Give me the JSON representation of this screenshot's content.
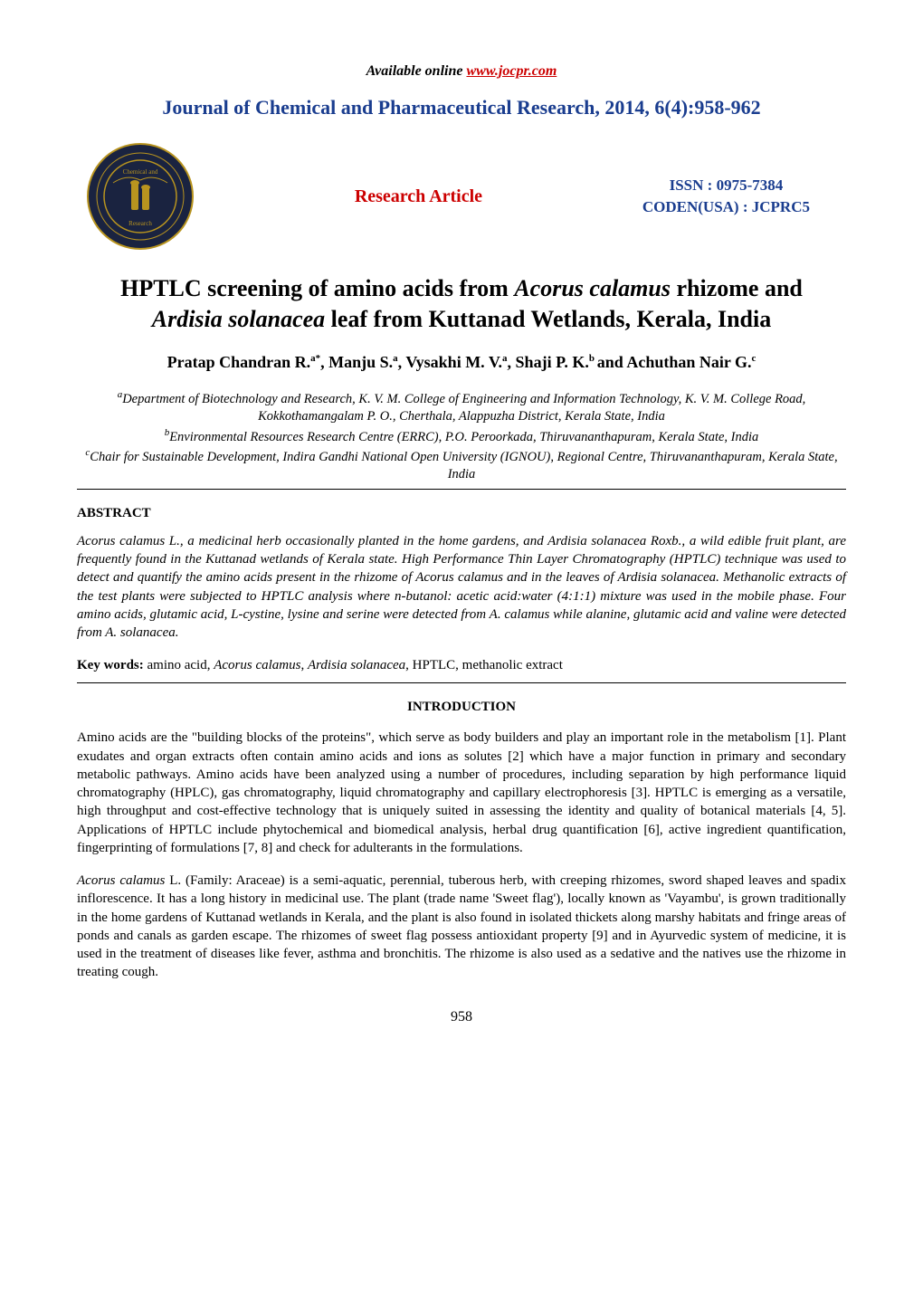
{
  "header": {
    "available_label": "Available online ",
    "available_url": "www.jocpr.com",
    "journal_title": "Journal of Chemical and Pharmaceutical Research, 2014, 6(4):958-962",
    "research_article": "Research Article",
    "issn_line1": "ISSN : 0975-7384",
    "issn_line2": "CODEN(USA) : JCPRC5"
  },
  "title": {
    "line1_pre": "HPTLC screening of amino acids from ",
    "line1_italic": "Acorus calamus",
    "line1_post": " rhizome and",
    "line2_italic": "Ardisia solanacea",
    "line2_post": " leaf from Kuttanad Wetlands, Kerala, India"
  },
  "authors": "Pratap Chandran R.|a*|, Manju S.|a|, Vysakhi M. V.|a|, Shaji P. K.|b | and Achuthan Nair G.|c|",
  "affiliations": [
    {
      "sup": "a",
      "text": "Department of Biotechnology and Research, K. V. M. College of Engineering and Information Technology, K. V. M. College Road, Kokkothamangalam P. O., Cherthala, Alappuzha District, Kerala State, India"
    },
    {
      "sup": "b",
      "text": "Environmental Resources Research Centre (ERRC), P.O. Peroorkada, Thiruvananthapuram, Kerala State, India"
    },
    {
      "sup": "c",
      "text": "Chair for Sustainable Development, Indira Gandhi National Open University (IGNOU), Regional Centre, Thiruvananthapuram, Kerala State, India"
    }
  ],
  "abstract": {
    "heading": "ABSTRACT",
    "text": "Acorus calamus L., a medicinal herb occasionally planted in the home gardens, and Ardisia solanacea Roxb., a wild edible fruit plant, are frequently found in the Kuttanad wetlands of  Kerala state. High Performance Thin Layer Chromatography (HPTLC) technique was used to detect and quantify the amino acids present in the rhizome of Acorus calamus and in the leaves of Ardisia solanacea. Methanolic extracts of the test plants were subjected to HPTLC analysis where n-butanol: acetic acid:water (4:1:1) mixture was used in the mobile phase. Four amino acids, glutamic acid, L-cystine, lysine and serine were detected from A. calamus while alanine, glutamic acid and valine were detected from A. solanacea."
  },
  "keywords": {
    "label": "Key words: ",
    "pre": "amino acid, ",
    "italic1": "Acorus calamus",
    "mid": ", ",
    "italic2": "Ardisia solanacea",
    "post": ", HPTLC, methanolic extract"
  },
  "introduction": {
    "heading": "INTRODUCTION",
    "p1": "Amino acids are the \"building blocks of the proteins\", which serve as body builders and play an important role in the metabolism [1]. Plant exudates and organ extracts often contain amino acids and ions as solutes [2] which have a major function in primary and secondary metabolic pathways. Amino acids have been analyzed using a number of procedures, including separation by high performance liquid chromatography (HPLC), gas chromatography, liquid chromatography and capillary electrophoresis [3]. HPTLC is emerging as a versatile, high throughput and cost-effective technology that is uniquely suited in assessing the identity and quality of botanical materials [4, 5]. Applications of HPTLC include phytochemical and biomedical analysis, herbal drug quantification [6], active ingredient quantification, fingerprinting of formulations [7, 8] and check for adulterants in the formulations.",
    "p2_italic": "Acorus calamus",
    "p2_rest": " L. (Family: Araceae) is a semi-aquatic, perennial, tuberous herb, with creeping rhizomes, sword shaped leaves and spadix inflorescence. It has a long history in medicinal use. The plant (trade name 'Sweet flag'), locally known as 'Vayambu', is grown traditionally in the home gardens of Kuttanad wetlands in Kerala, and the plant is also found in isolated thickets along marshy habitats and fringe areas of ponds and canals as garden escape. The rhizomes of sweet flag possess antioxidant property [9] and in Ayurvedic system of medicine, it is used in the treatment of diseases like fever, asthma and bronchitis. The rhizome is also used as a sedative and the natives use the rhizome in treating cough."
  },
  "page_number": "958",
  "colors": {
    "blue": "#1a3d8f",
    "red": "#cc0000",
    "text": "#000000",
    "background": "#ffffff",
    "logo_dark": "#1a2340",
    "logo_gold": "#b8941f"
  }
}
